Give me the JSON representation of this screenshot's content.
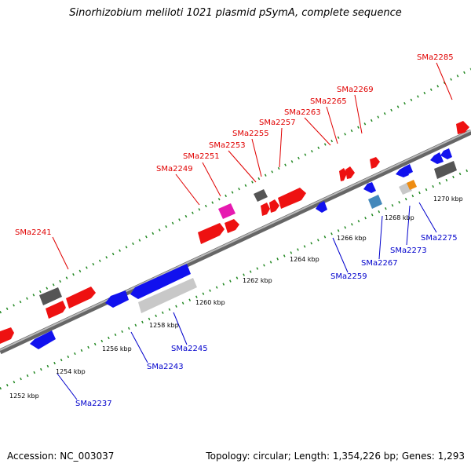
{
  "header": {
    "title": "Sinorhizobium meliloti 1021 plasmid pSymA, complete sequence"
  },
  "footer": {
    "accession": "Accession: NC_003037",
    "topology": "Topology: circular; Length: 1,354,226 bp; Genes: 1,293"
  },
  "colors": {
    "forward": "#ee1111",
    "reverse": "#1111ee",
    "backbone": "#888888",
    "tick": "#228822",
    "label_top": "#e00000",
    "label_bottom": "#0000cc"
  },
  "scale": {
    "ticks": [
      "1252 kbp",
      "1254 kbp",
      "1256 kbp",
      "1258 kbp",
      "1260 kbp",
      "1262 kbp",
      "1264 kbp",
      "1266 kbp",
      "1268 kbp",
      "1270 kbp"
    ]
  },
  "genes_top": [
    "SMa2241",
    "SMa2249",
    "SMa2251",
    "SMa2253",
    "SMa2255",
    "SMa2257",
    "SMa2263",
    "SMa2265",
    "SMa2269",
    "SMa2285"
  ],
  "genes_bottom": [
    "SMa2237",
    "SMa2243",
    "SMa2245",
    "SMa2259",
    "SMa2267",
    "SMa2273",
    "SMa2275"
  ]
}
